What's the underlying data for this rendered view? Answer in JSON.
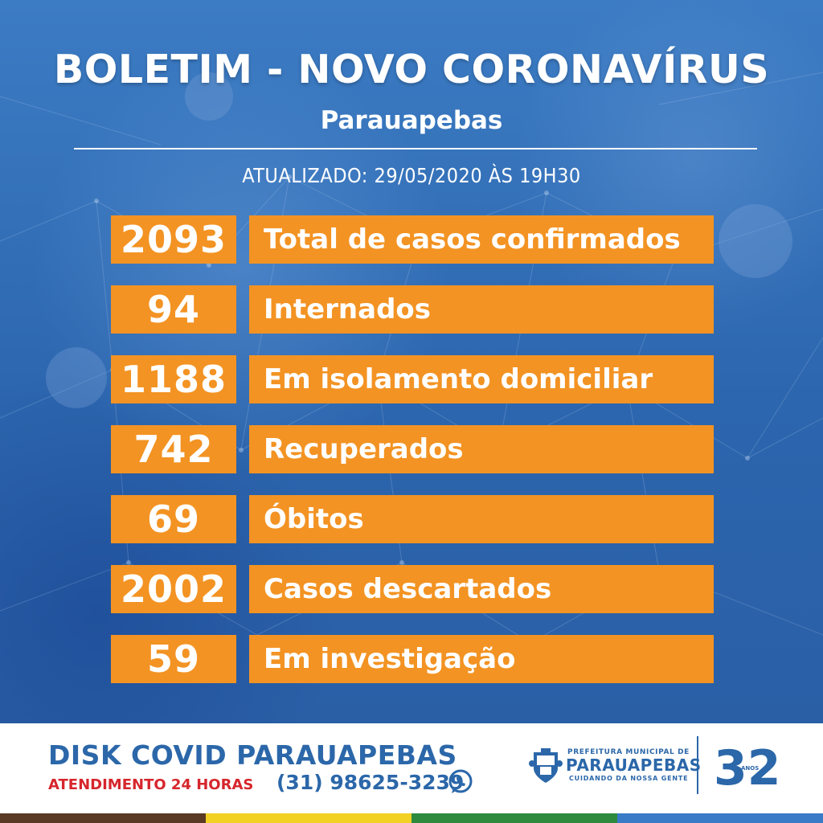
{
  "header": {
    "title": "BOLETIM - NOVO CORONAVÍRUS",
    "city": "Parauapebas",
    "updated": "ATUALIZADO: 29/05/2020 ÀS 19H30"
  },
  "stats": [
    {
      "value": "2093",
      "label": "Total de casos confirmados"
    },
    {
      "value": "94",
      "label": "Internados"
    },
    {
      "value": "1188",
      "label": "Em isolamento domiciliar"
    },
    {
      "value": "742",
      "label": "Recuperados"
    },
    {
      "value": "69",
      "label": "Óbitos"
    },
    {
      "value": "2002",
      "label": "Casos descartados"
    },
    {
      "value": "59",
      "label": "Em investigação"
    }
  ],
  "footer": {
    "disk_title": "DISK COVID PARAUAPEBAS",
    "attendance": "ATENDIMENTO 24 HORAS",
    "phone": "(31) 98625-3239",
    "phone_icon": "whatsapp-icon",
    "logo_small": "PREFEITURA MUNICIPAL DE",
    "logo_name": "PARAUAPEBAS",
    "logo_tagline": "CUIDANDO DA NOSSA GENTE",
    "anniversary": "32",
    "anniversary_unit": "ANOS"
  },
  "colors": {
    "background_blue": "#2f6fb7",
    "box_orange": "#f39323",
    "footer_blue": "#2b67a9",
    "footer_red": "#d6262c",
    "stripes": [
      "#5a3a24",
      "#f2d024",
      "#2e8b3e",
      "#3a7bc8"
    ]
  }
}
